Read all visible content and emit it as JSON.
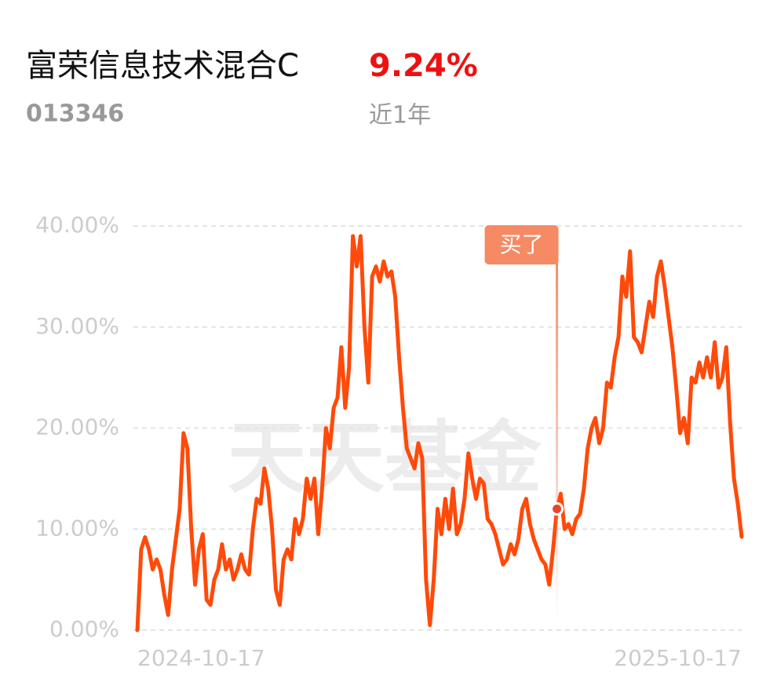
{
  "header": {
    "fund_name": "富荣信息技术混合C",
    "return": "9.24%",
    "code": "013346",
    "period": "近1年"
  },
  "watermark": "天天基金",
  "chart_data": {
    "type": "line",
    "xlim": [
      0,
      157
    ],
    "xticks": [
      {
        "value": 0,
        "label": "2024-10-17"
      },
      {
        "value": 157,
        "label": "2025-10-17"
      }
    ],
    "ylim": [
      0,
      40
    ],
    "yticks": [
      {
        "value": 0,
        "label": "0.00%"
      },
      {
        "value": 10,
        "label": "10.00%"
      },
      {
        "value": 20,
        "label": "20.00%"
      },
      {
        "value": 30,
        "label": "30.00%"
      },
      {
        "value": 40,
        "label": "40.00%"
      }
    ],
    "grid": true,
    "series": [
      {
        "color": "#ff4a0a",
        "values": [
          0,
          8,
          9.2,
          8,
          6,
          7,
          6,
          3.5,
          1.5,
          6,
          9,
          12,
          19.5,
          18,
          10,
          4.5,
          8,
          9.5,
          3,
          2.5,
          5,
          6,
          8.5,
          6,
          7,
          5,
          6,
          7.5,
          6,
          5.5,
          10,
          13,
          12.5,
          16,
          14,
          10,
          4,
          2.5,
          7,
          8,
          7,
          11,
          9.5,
          11,
          15,
          13,
          15,
          9.5,
          14,
          20,
          18,
          22,
          23,
          28,
          22,
          26,
          39,
          36,
          39,
          30,
          24.5,
          35,
          36,
          34.5,
          36.5,
          35,
          35.5,
          33,
          27,
          22,
          18,
          17,
          16,
          18.5,
          17,
          5,
          0.5,
          5,
          12,
          9.5,
          13,
          10,
          14,
          9.5,
          10.5,
          13,
          17.5,
          15,
          13,
          15,
          14.5,
          11,
          10.5,
          9.5,
          8,
          6.5,
          7,
          8.5,
          7.5,
          9,
          12,
          13,
          10.5,
          9,
          8,
          7,
          6.5,
          4.5,
          8,
          12,
          13.5,
          10,
          10.5,
          9.5,
          11,
          11.5,
          14,
          18,
          20,
          21,
          18.5,
          20,
          24.5,
          24,
          27,
          29,
          35,
          33,
          37.5,
          29,
          28.5,
          27.5,
          30,
          32.5,
          31,
          35,
          36.5,
          34,
          31,
          28,
          24,
          19.5,
          21,
          18.5,
          25,
          24.5,
          26.5,
          25,
          27,
          25,
          28.5,
          24,
          25,
          28,
          20.5,
          15,
          12.5,
          9.24
        ]
      }
    ],
    "annotation": {
      "text": "买了",
      "x": 109
    }
  }
}
